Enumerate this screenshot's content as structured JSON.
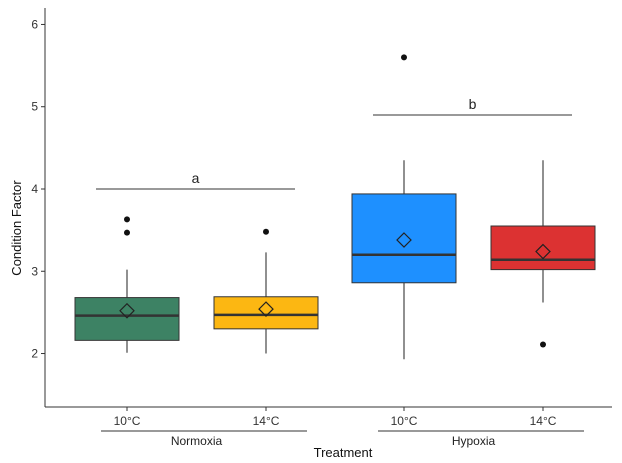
{
  "chart_data": {
    "type": "boxplot",
    "xlabel": "Treatment",
    "ylabel": "Condition Factor",
    "ylim": [
      1.35,
      6.2
    ],
    "yticks": [
      2,
      3,
      4,
      5,
      6
    ],
    "grid": false,
    "groups": [
      {
        "label": "10°C",
        "group": "Normoxia",
        "color": "#3d8264",
        "q1": 2.16,
        "median": 2.46,
        "q3": 2.68,
        "whisker_low": 2.01,
        "whisker_high": 3.02,
        "mean": 2.52,
        "outliers": [
          3.63,
          3.47
        ]
      },
      {
        "label": "14°C",
        "group": "Normoxia",
        "color": "#fcb712",
        "q1": 2.3,
        "median": 2.47,
        "q3": 2.69,
        "whisker_low": 2.0,
        "whisker_high": 3.23,
        "mean": 2.54,
        "outliers": [
          3.48
        ]
      },
      {
        "label": "10°C",
        "group": "Hypoxia",
        "color": "#1e90ff",
        "q1": 2.86,
        "median": 3.2,
        "q3": 3.94,
        "whisker_low": 1.93,
        "whisker_high": 4.35,
        "mean": 3.38,
        "outliers": [
          5.6
        ]
      },
      {
        "label": "14°C",
        "group": "Hypoxia",
        "color": "#dc3232",
        "q1": 3.02,
        "median": 3.14,
        "q3": 3.55,
        "whisker_low": 2.62,
        "whisker_high": 4.35,
        "mean": 3.24,
        "outliers": [
          2.11
        ]
      }
    ],
    "group_labels": [
      "Normoxia",
      "Hypoxia"
    ],
    "annotations": [
      {
        "text": "a",
        "y": 4.0,
        "span": [
          0,
          1
        ]
      },
      {
        "text": "b",
        "y": 4.9,
        "span": [
          2,
          3
        ]
      }
    ]
  }
}
